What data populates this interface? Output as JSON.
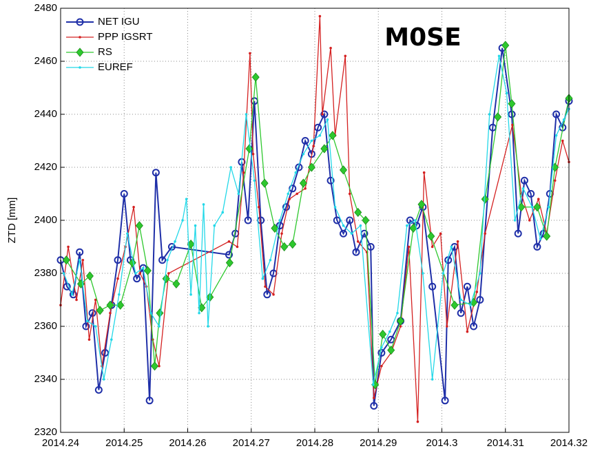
{
  "chart_data": {
    "type": "line",
    "annotation": "M0SE",
    "y_label": "ZTD [mm]",
    "xlim": [
      2014.24,
      2014.32
    ],
    "xticks": [
      2014.24,
      2014.25,
      2014.26,
      2014.27,
      2014.28,
      2014.29,
      2014.3,
      2014.31,
      2014.32
    ],
    "ylim": [
      2320,
      2480
    ],
    "yticks": [
      2320,
      2340,
      2360,
      2380,
      2400,
      2420,
      2440,
      2460,
      2480
    ],
    "grid": true,
    "legend": "upper left",
    "series": [
      {
        "name": "NET IGU",
        "color": "#1f2fa8",
        "marker": "o",
        "x": [
          2014.24,
          2014.241,
          2014.242,
          2014.243,
          2014.244,
          2014.245,
          2014.246,
          2014.247,
          2014.248,
          2014.249,
          2014.25,
          2014.251,
          2014.252,
          2014.253,
          2014.254,
          2014.255,
          2014.256,
          2014.2575,
          2014.2665,
          2014.2675,
          2014.2685,
          2014.2695,
          2014.2705,
          2014.2715,
          2014.2725,
          2014.2735,
          2014.2745,
          2014.2755,
          2014.2765,
          2014.2775,
          2014.2785,
          2014.2795,
          2014.2805,
          2014.2815,
          2014.2825,
          2014.2835,
          2014.2845,
          2014.2855,
          2014.2865,
          2014.2878,
          2014.2888,
          2014.2893,
          2014.2905,
          2014.292,
          2014.2935,
          2014.295,
          2014.296,
          2014.297,
          2014.2985,
          2014.3005,
          2014.301,
          2014.302,
          2014.303,
          2014.304,
          2014.305,
          2014.306,
          2014.308,
          2014.3095,
          2014.311,
          2014.312,
          2014.313,
          2014.314,
          2014.315,
          2014.316,
          2014.317,
          2014.318,
          2014.319,
          2014.32
        ],
        "values": [
          2385,
          2375,
          2372,
          2388,
          2360,
          2365,
          2336,
          2350,
          2368,
          2385,
          2410,
          2385,
          2378,
          2382,
          2332,
          2418,
          2385,
          2390,
          2387,
          2395,
          2422,
          2400,
          2445,
          2400,
          2372,
          2380,
          2398,
          2405,
          2412,
          2420,
          2430,
          2425,
          2435,
          2440,
          2415,
          2400,
          2395,
          2400,
          2388,
          2395,
          2390,
          2330,
          2350,
          2355,
          2362,
          2400,
          2398,
          2405,
          2375,
          2332,
          2385,
          2390,
          2365,
          2375,
          2360,
          2370,
          2435,
          2465,
          2440,
          2395,
          2415,
          2410,
          2390,
          2395,
          2410,
          2440,
          2435,
          2445
        ]
      },
      {
        "name": "PPP IGSRT",
        "color": "#d42020",
        "marker": ".",
        "x": [
          2014.24,
          2014.2412,
          2014.2425,
          2014.2435,
          2014.2445,
          2014.2455,
          2014.2465,
          2014.2478,
          2014.249,
          2014.2502,
          2014.2515,
          2014.2525,
          2014.2535,
          2014.2545,
          2014.2555,
          2014.257,
          2014.2665,
          2014.2678,
          2014.2688,
          2014.2698,
          2014.2703,
          2014.2712,
          2014.2722,
          2014.2735,
          2014.2748,
          2014.276,
          2014.2772,
          2014.2785,
          2014.2798,
          2014.2808,
          2014.2812,
          2014.2825,
          2014.2832,
          2014.2848,
          2014.2855,
          2014.2868,
          2014.2882,
          2014.2893,
          2014.2905,
          2014.292,
          2014.2935,
          2014.2948,
          2014.2962,
          2014.2972,
          2014.2985,
          2014.2998,
          2014.3008,
          2014.3025,
          2014.304,
          2014.3055,
          2014.3068,
          2014.3111,
          2014.3125,
          2014.3138,
          2014.3152,
          2014.3165,
          2014.3178,
          2014.319,
          2014.32
        ],
        "values": [
          2368,
          2390,
          2370,
          2385,
          2355,
          2370,
          2345,
          2365,
          2378,
          2390,
          2405,
          2380,
          2375,
          2355,
          2345,
          2380,
          2392,
          2390,
          2418,
          2463,
          2425,
          2405,
          2375,
          2372,
          2395,
          2408,
          2410,
          2412,
          2428,
          2477,
          2440,
          2465,
          2432,
          2462,
          2410,
          2392,
          2388,
          2333,
          2345,
          2350,
          2360,
          2390,
          2324,
          2418,
          2390,
          2395,
          2360,
          2392,
          2358,
          2373,
          2395,
          2436,
          2410,
          2400,
          2408,
          2395,
          2415,
          2430,
          2422
        ]
      },
      {
        "name": "RS",
        "color": "#2ec82e",
        "marker": "d",
        "x": [
          2014.2409,
          2014.2432,
          2014.2446,
          2014.2462,
          2014.2478,
          2014.2494,
          2014.2513,
          2014.2524,
          2014.2537,
          2014.2548,
          2014.2556,
          2014.2566,
          2014.2582,
          2014.2605,
          2014.2622,
          2014.2635,
          2014.2666,
          2014.2697,
          2014.2707,
          2014.2721,
          2014.2737,
          2014.2752,
          2014.2765,
          2014.2782,
          2014.2795,
          2014.2815,
          2014.2828,
          2014.2845,
          2014.2868,
          2014.288,
          2014.2895,
          2014.2907,
          2014.292,
          2014.2935,
          2014.2955,
          2014.2968,
          2014.2983,
          2014.302,
          2014.305,
          2014.3068,
          2014.3088,
          2014.31,
          2014.311,
          2014.3125,
          2014.315,
          2014.3165,
          2014.3178,
          2014.32
        ],
        "values": [
          2385,
          2376,
          2379,
          2366,
          2368,
          2368,
          2384,
          2398,
          2381,
          2345,
          2365,
          2378,
          2376,
          2391,
          2367,
          2371,
          2384,
          2427,
          2454,
          2414,
          2397,
          2390,
          2391,
          2414,
          2420,
          2427,
          2432,
          2419,
          2403,
          2400,
          2338,
          2357,
          2351,
          2362,
          2397,
          2406,
          2394,
          2368,
          2369,
          2408,
          2439,
          2466,
          2444,
          2405,
          2405,
          2394,
          2420,
          2446
        ]
      },
      {
        "name": "EUREF",
        "color": "#22d8e8",
        "marker": ".",
        "x": [
          2014.2405,
          2014.2418,
          2014.243,
          2014.2442,
          2014.2455,
          2014.2468,
          2014.248,
          2014.2492,
          2014.2505,
          2014.2518,
          2014.253,
          2014.2542,
          2014.2555,
          2014.2568,
          2014.258,
          2014.2592,
          2014.2598,
          2014.2605,
          2014.2612,
          2014.2618,
          2014.2625,
          2014.2632,
          2014.2642,
          2014.2655,
          2014.2668,
          2014.268,
          2014.2692,
          2014.2705,
          2014.2718,
          2014.273,
          2014.2745,
          2014.2758,
          2014.277,
          2014.2782,
          2014.2795,
          2014.2808,
          2014.282,
          2014.2832,
          2014.2845,
          2014.2858,
          2014.2872,
          2014.2892,
          2014.2905,
          2014.2918,
          2014.293,
          2014.2945,
          2014.2958,
          2014.297,
          2014.2985,
          2014.3002,
          2014.3015,
          2014.303,
          2014.3045,
          2014.306,
          2014.3075,
          2014.309,
          2014.3102,
          2014.3115,
          2014.3128,
          2014.3142,
          2014.3155,
          2014.3168,
          2014.318,
          2014.3192,
          2014.32
        ],
        "values": [
          2380,
          2372,
          2385,
          2362,
          2360,
          2340,
          2355,
          2372,
          2395,
          2380,
          2382,
          2365,
          2360,
          2385,
          2392,
          2400,
          2408,
          2372,
          2398,
          2365,
          2406,
          2360,
          2398,
          2403,
          2420,
          2410,
          2440,
          2415,
          2378,
          2385,
          2400,
          2410,
          2418,
          2425,
          2430,
          2432,
          2438,
          2405,
          2398,
          2395,
          2398,
          2338,
          2352,
          2358,
          2365,
          2398,
          2400,
          2380,
          2340,
          2380,
          2390,
          2370,
          2368,
          2380,
          2440,
          2462,
          2448,
          2400,
          2412,
          2405,
          2393,
          2405,
          2432,
          2438,
          2442
        ]
      }
    ]
  }
}
